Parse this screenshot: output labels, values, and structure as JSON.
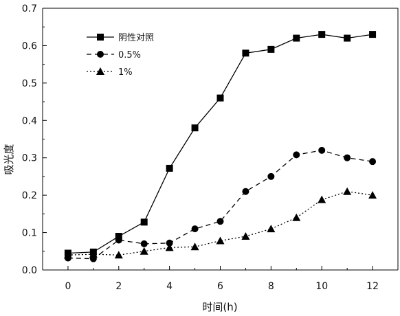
{
  "chart_data": {
    "type": "line",
    "title": "",
    "xlabel": "时间(h)",
    "ylabel": "吸光度",
    "xlim": [
      -1,
      13
    ],
    "ylim": [
      0,
      0.7
    ],
    "xticks": [
      0,
      2,
      4,
      6,
      8,
      10,
      12
    ],
    "yticks": [
      0.0,
      0.1,
      0.2,
      0.3,
      0.4,
      0.5,
      0.6,
      0.7
    ],
    "ytick_labels": [
      "0.0",
      "0.1",
      "0.2",
      "0.3",
      "0.4",
      "0.5",
      "0.6",
      "0.7"
    ],
    "grid": false,
    "legend_position": "top-left",
    "x": [
      0,
      1,
      2,
      3,
      4,
      5,
      6,
      7,
      8,
      9,
      10,
      11,
      12
    ],
    "series": [
      {
        "name": "阴性对照",
        "marker": "square",
        "line_style": "solid",
        "values": [
          0.045,
          0.048,
          0.09,
          0.128,
          0.272,
          0.38,
          0.46,
          0.58,
          0.59,
          0.62,
          0.63,
          0.62,
          0.63
        ]
      },
      {
        "name": "0.5%",
        "marker": "circle",
        "line_style": "dashed",
        "values": [
          0.032,
          0.03,
          0.08,
          0.07,
          0.072,
          0.11,
          0.13,
          0.21,
          0.25,
          0.308,
          0.32,
          0.3,
          0.29
        ]
      },
      {
        "name": "1%",
        "marker": "triangle",
        "line_style": "dotted",
        "values": [
          0.04,
          0.042,
          0.04,
          0.05,
          0.06,
          0.062,
          0.078,
          0.09,
          0.11,
          0.14,
          0.188,
          0.21,
          0.2
        ]
      }
    ]
  }
}
